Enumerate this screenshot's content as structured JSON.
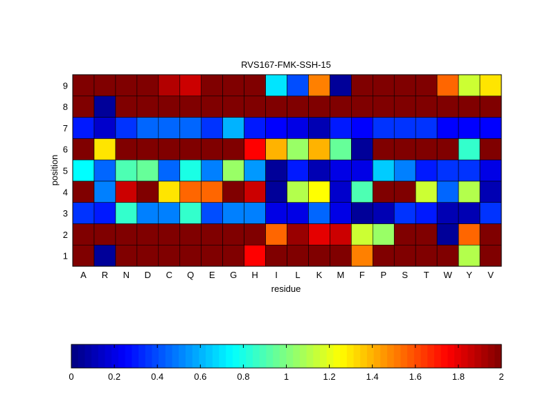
{
  "chart_data": {
    "type": "heatmap",
    "title": "RVS167-FMK-SSH-15",
    "xlabel": "residue",
    "ylabel": "position",
    "x": [
      "A",
      "R",
      "N",
      "D",
      "C",
      "Q",
      "E",
      "G",
      "H",
      "I",
      "L",
      "K",
      "M",
      "F",
      "P",
      "S",
      "T",
      "W",
      "Y",
      "V"
    ],
    "y": [
      "1",
      "2",
      "3",
      "4",
      "5",
      "6",
      "7",
      "8",
      "9"
    ],
    "values": [
      [
        2.0,
        0.05,
        2.0,
        2.0,
        2.0,
        2.0,
        2.0,
        2.0,
        1.75,
        2.0,
        2.0,
        2.0,
        2.0,
        1.5,
        2.0,
        2.0,
        2.0,
        2.0,
        1.1,
        2.0
      ],
      [
        2.0,
        2.0,
        2.0,
        2.0,
        2.0,
        2.0,
        2.0,
        2.0,
        2.0,
        1.55,
        1.95,
        1.8,
        1.85,
        1.15,
        1.05,
        2.0,
        2.0,
        0.05,
        1.55,
        2.0
      ],
      [
        0.35,
        0.3,
        0.85,
        0.5,
        0.5,
        0.85,
        0.4,
        0.5,
        0.5,
        0.2,
        0.2,
        0.45,
        0.2,
        0.05,
        0.1,
        0.35,
        0.3,
        0.1,
        0.1,
        0.35
      ],
      [
        2.0,
        0.5,
        1.85,
        2.0,
        1.3,
        1.55,
        1.55,
        2.0,
        1.85,
        0.05,
        1.1,
        1.25,
        0.15,
        0.9,
        2.0,
        2.0,
        1.15,
        0.45,
        1.1,
        0.1
      ],
      [
        0.75,
        0.45,
        0.9,
        0.95,
        0.45,
        0.8,
        0.5,
        1.05,
        0.55,
        0.05,
        0.3,
        0.1,
        0.2,
        0.2,
        0.65,
        0.5,
        0.3,
        0.35,
        0.35,
        0.2
      ],
      [
        2.0,
        1.3,
        2.0,
        2.0,
        2.0,
        2.0,
        2.0,
        2.0,
        1.75,
        1.4,
        1.05,
        1.4,
        0.95,
        0.05,
        2.0,
        2.0,
        2.0,
        2.0,
        0.85,
        2.0
      ],
      [
        0.3,
        0.15,
        0.35,
        0.45,
        0.45,
        0.45,
        0.35,
        0.6,
        0.3,
        0.25,
        0.2,
        0.1,
        0.3,
        0.25,
        0.35,
        0.35,
        0.35,
        0.25,
        0.25,
        0.25
      ],
      [
        2.0,
        0.05,
        2.0,
        2.0,
        2.0,
        2.0,
        2.0,
        2.0,
        2.0,
        2.0,
        2.0,
        2.0,
        2.0,
        2.0,
        2.0,
        2.0,
        2.0,
        2.0,
        2.0,
        2.0
      ],
      [
        2.0,
        2.0,
        2.0,
        2.0,
        1.9,
        1.85,
        2.0,
        2.0,
        2.0,
        0.7,
        0.4,
        1.5,
        0.05,
        2.0,
        2.0,
        2.0,
        2.0,
        1.55,
        1.15,
        1.3
      ]
    ],
    "colorbar": {
      "min": 0,
      "max": 2,
      "ticks": [
        "0",
        "0.2",
        "0.4",
        "0.6",
        "0.8",
        "1",
        "1.2",
        "1.4",
        "1.6",
        "1.8",
        "2"
      ],
      "colormap": "jet",
      "placement": "bottom"
    },
    "grid": false
  }
}
